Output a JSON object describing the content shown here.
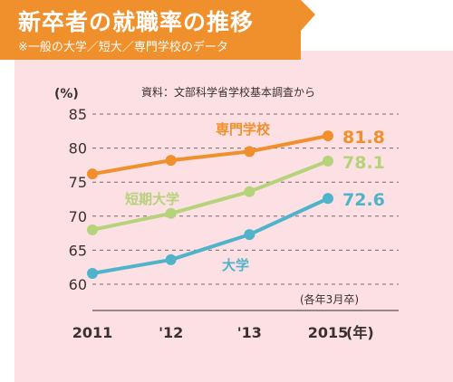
{
  "header": {
    "title": "新卒者の就職率の推移",
    "subtitle": "※一般の大学／短大／専門学校のデータ"
  },
  "colors": {
    "banner": "#f0902c",
    "background": "#fde0e4",
    "grid": "#7a6a6a",
    "text": "#3a3030"
  },
  "chart_data": {
    "type": "line",
    "source": "資料：文部科学省学校基本調査から",
    "y_unit_label": "(%)",
    "x_unit_label": "(年)",
    "x_note": "(各年3月卒)",
    "categories": [
      "2011",
      "'12",
      "'13",
      "2015"
    ],
    "ylim": [
      60,
      85
    ],
    "yticks": [
      "85",
      "80",
      "75",
      "70",
      "65",
      "60"
    ],
    "grid": true,
    "series": [
      {
        "name": "専門学校",
        "values": [
          76.2,
          78.2,
          79.5,
          81.8
        ],
        "color": "#f0902c",
        "end_label": "81.8"
      },
      {
        "name": "短期大学",
        "values": [
          68.0,
          70.4,
          73.6,
          78.1
        ],
        "color": "#b5d37a",
        "end_label": "78.1"
      },
      {
        "name": "大学",
        "values": [
          61.6,
          63.6,
          67.3,
          72.6
        ],
        "color": "#4fb3c9",
        "end_label": "72.6"
      }
    ]
  }
}
